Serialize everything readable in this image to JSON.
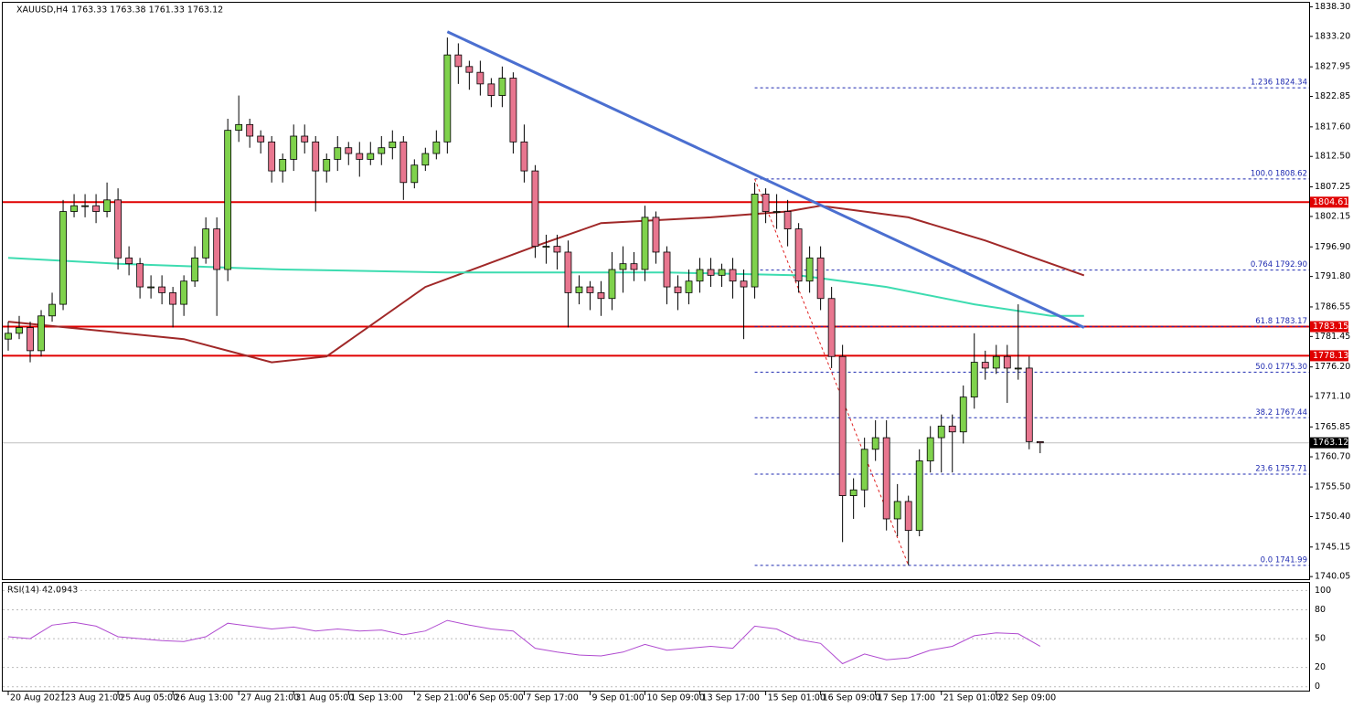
{
  "chart_data": [
    {
      "type": "candlestick",
      "title": "XAUUSD,H4",
      "subtitle": "1763.33 1763.38 1761.33 1763.12",
      "open": [
        1781,
        1782,
        1783,
        1779,
        1785,
        1787,
        1803,
        1804,
        1804,
        1803,
        1805,
        1795,
        1794,
        1790,
        1790,
        1789,
        1787,
        1791,
        1795,
        1800,
        1793,
        1817,
        1818,
        1816,
        1815,
        1810,
        1812,
        1816,
        1815,
        1810,
        1812,
        1814,
        1813,
        1812,
        1813,
        1814,
        1815,
        1808,
        1811,
        1813,
        1815,
        1830,
        1828,
        1827,
        1825,
        1823,
        1826,
        1815,
        1810,
        1797,
        1797,
        1796,
        1789,
        1790,
        1789,
        1788,
        1793,
        1794,
        1793,
        1802,
        1796,
        1790,
        1789,
        1791,
        1793,
        1792,
        1793,
        1791,
        1790,
        1806,
        1803,
        1803,
        1800,
        1791,
        1795,
        1788,
        1778,
        1754,
        1755,
        1762,
        1764,
        1750,
        1753,
        1748,
        1760,
        1764,
        1766,
        1765,
        1771,
        1777,
        1776,
        1778,
        1776,
        1776,
        1763.33
      ],
      "high": [
        1784,
        1785,
        1784,
        1786,
        1789,
        1805,
        1806,
        1806,
        1806,
        1808,
        1807,
        1797,
        1795,
        1792,
        1792,
        1790,
        1792,
        1797,
        1802,
        1802,
        1819,
        1823,
        1819,
        1817,
        1816,
        1813,
        1818,
        1818,
        1816,
        1813,
        1816,
        1815,
        1815,
        1815,
        1816,
        1817,
        1816,
        1812,
        1814,
        1817,
        1833,
        1832,
        1829,
        1829,
        1826,
        1828,
        1827,
        1818,
        1811,
        1799,
        1799,
        1798,
        1792,
        1791,
        1791,
        1796,
        1797,
        1796,
        1804,
        1803,
        1797,
        1792,
        1793,
        1795,
        1795,
        1794,
        1795,
        1793,
        1808,
        1807,
        1806,
        1805,
        1801,
        1797,
        1797,
        1790,
        1780,
        1757,
        1764,
        1767,
        1767,
        1756,
        1754,
        1762,
        1766,
        1768,
        1768,
        1773,
        1782,
        1779,
        1780,
        1780,
        1787,
        1778,
        1763.38
      ],
      "low": [
        1779,
        1781,
        1777,
        1778,
        1784,
        1786,
        1802,
        1802,
        1801,
        1802,
        1793,
        1792,
        1788,
        1788,
        1787,
        1783,
        1785,
        1790,
        1794,
        1785,
        1791,
        1815,
        1814,
        1813,
        1808,
        1808,
        1810,
        1813,
        1803,
        1808,
        1810,
        1811,
        1809,
        1811,
        1811,
        1812,
        1805,
        1807,
        1810,
        1812,
        1813,
        1825,
        1824,
        1823,
        1821,
        1821,
        1813,
        1808,
        1795,
        1794,
        1793,
        1783,
        1787,
        1786,
        1785,
        1786,
        1789,
        1791,
        1791,
        1794,
        1787,
        1786,
        1787,
        1789,
        1790,
        1790,
        1788,
        1781,
        1788,
        1801,
        1800,
        1797,
        1789,
        1789,
        1786,
        1776,
        1746,
        1750,
        1752,
        1760,
        1748,
        1747,
        1742,
        1747,
        1758,
        1758,
        1758,
        1763,
        1769,
        1774,
        1775,
        1770,
        1774,
        1762,
        1761.33
      ],
      "close": [
        1782,
        1783,
        1779,
        1785,
        1787,
        1803,
        1804,
        1804,
        1803,
        1805,
        1795,
        1794,
        1790,
        1790,
        1789,
        1787,
        1791,
        1795,
        1800,
        1793,
        1817,
        1818,
        1816,
        1815,
        1810,
        1812,
        1816,
        1815,
        1810,
        1812,
        1814,
        1813,
        1812,
        1813,
        1814,
        1815,
        1808,
        1811,
        1813,
        1815,
        1830,
        1828,
        1827,
        1825,
        1823,
        1826,
        1815,
        1810,
        1797,
        1797,
        1796,
        1789,
        1790,
        1789,
        1788,
        1793,
        1794,
        1793,
        1802,
        1796,
        1790,
        1789,
        1791,
        1793,
        1792,
        1793,
        1791,
        1790,
        1806,
        1803,
        1803,
        1800,
        1791,
        1795,
        1788,
        1778,
        1754,
        1755,
        1762,
        1764,
        1750,
        1753,
        1748,
        1760,
        1764,
        1766,
        1765,
        1771,
        1777,
        1776,
        1778,
        1776,
        1776,
        1763.33,
        1763.12
      ],
      "up_color": "#7fd24c",
      "down_color": "#e8768f",
      "series": [
        {
          "color": "#a02828",
          "x": [
            0,
            16,
            24,
            29,
            38,
            48,
            54,
            64,
            71,
            74,
            82,
            89,
            98
          ],
          "values": [
            1784,
            1781,
            1777,
            1778,
            1790,
            1797,
            1801,
            1802,
            1803,
            1804,
            1802,
            1798,
            1792
          ]
        },
        {
          "color": "#3ddcb0",
          "x": [
            0,
            10,
            25,
            40,
            60,
            72,
            80,
            88,
            95,
            98
          ],
          "values": [
            1795,
            1794,
            1793,
            1792.5,
            1792.5,
            1792,
            1790,
            1787,
            1785,
            1785
          ]
        }
      ],
      "trendline": {
        "color": "#4b6fd0",
        "x": [
          40,
          98
        ],
        "y": [
          1834,
          1783
        ]
      },
      "hlines": [
        {
          "value": 1804.61,
          "color": "#e00000"
        },
        {
          "value": 1783.15,
          "color": "#e00000"
        },
        {
          "value": 1778.13,
          "color": "#e00000"
        }
      ],
      "last_price": 1763.12,
      "fib": {
        "color": "#1e2ab0",
        "x": [
          68,
          82
        ],
        "y": [
          1808.62,
          1741.99
        ],
        "levels": [
          {
            "value": 1824.34,
            "label": "1.236 1824.34"
          },
          {
            "value": 1808.62,
            "label": "100.0 1808.62"
          },
          {
            "value": 1792.9,
            "label": "0.764 1792.90"
          },
          {
            "value": 1783.17,
            "label": "61.8 1783.17"
          },
          {
            "value": 1775.3,
            "label": "50.0 1775.30"
          },
          {
            "value": 1767.44,
            "label": "38.2 1767.44"
          },
          {
            "value": 1757.71,
            "label": "23.6 1757.71"
          },
          {
            "value": 1741.99,
            "label": "0.0 1741.99"
          }
        ]
      },
      "xlim": [
        -0.5,
        118.5
      ],
      "xticks": [
        {
          "value": 0,
          "label": "20 Aug 2021"
        },
        {
          "value": 5,
          "label": "23 Aug 21:00"
        },
        {
          "value": 10,
          "label": "25 Aug 05:00"
        },
        {
          "value": 15,
          "label": "26 Aug 13:00"
        },
        {
          "value": 21,
          "label": "27 Aug 21:00"
        },
        {
          "value": 26,
          "label": "31 Aug 05:00"
        },
        {
          "value": 31,
          "label": "1 Sep 13:00"
        },
        {
          "value": 37,
          "label": "2 Sep 21:00"
        },
        {
          "value": 42,
          "label": "6 Sep 05:00"
        },
        {
          "value": 47,
          "label": "7 Sep 17:00"
        },
        {
          "value": 53,
          "label": "9 Sep 01:00"
        },
        {
          "value": 58,
          "label": "10 Sep 09:00"
        },
        {
          "value": 63,
          "label": "13 Sep 17:00"
        },
        {
          "value": 69,
          "label": "15 Sep 01:00"
        },
        {
          "value": 74,
          "label": "16 Sep 09:00"
        },
        {
          "value": 79,
          "label": "17 Sep 17:00"
        },
        {
          "value": 85,
          "label": "21 Sep 01:00"
        },
        {
          "value": 90,
          "label": "22 Sep 09:00"
        }
      ],
      "ylim": [
        1739.6,
        1839.0
      ],
      "yticks": [
        {
          "value": 1838.3,
          "label": "1838.30"
        },
        {
          "value": 1833.2,
          "label": "1833.20"
        },
        {
          "value": 1827.95,
          "label": "1827.95"
        },
        {
          "value": 1822.85,
          "label": "1822.85"
        },
        {
          "value": 1817.6,
          "label": "1817.60"
        },
        {
          "value": 1812.5,
          "label": "1812.50"
        },
        {
          "value": 1807.25,
          "label": "1807.25"
        },
        {
          "value": 1802.15,
          "label": "1802.15"
        },
        {
          "value": 1796.9,
          "label": "1796.90"
        },
        {
          "value": 1791.8,
          "label": "1791.80"
        },
        {
          "value": 1786.55,
          "label": "1786.55"
        },
        {
          "value": 1781.45,
          "label": "1781.45"
        },
        {
          "value": 1776.2,
          "label": "1776.20"
        },
        {
          "value": 1771.1,
          "label": "1771.10"
        },
        {
          "value": 1765.85,
          "label": "1765.85"
        },
        {
          "value": 1760.7,
          "label": "1760.70"
        },
        {
          "value": 1755.5,
          "label": "1755.50"
        },
        {
          "value": 1750.4,
          "label": "1750.40"
        },
        {
          "value": 1745.15,
          "label": "1745.15"
        },
        {
          "value": 1740.05,
          "label": "1740.05"
        }
      ]
    },
    {
      "type": "line",
      "title": "RSI(14) 42.0943",
      "series": [
        {
          "color": "#b04bd0",
          "x": [
            0,
            2,
            4,
            6,
            8,
            10,
            12,
            14,
            16,
            18,
            20,
            22,
            24,
            26,
            28,
            30,
            32,
            34,
            36,
            38,
            40,
            42,
            44,
            46,
            48,
            50,
            52,
            54,
            56,
            58,
            60,
            62,
            64,
            66,
            68,
            70,
            72,
            74,
            76,
            78,
            80,
            82,
            84,
            86,
            88,
            90,
            92,
            94
          ],
          "values": [
            52,
            50,
            64,
            67,
            63,
            52,
            50,
            48,
            47,
            52,
            66,
            63,
            60,
            62,
            58,
            60,
            58,
            59,
            54,
            58,
            69,
            64,
            60,
            58,
            40,
            36,
            33,
            32,
            36,
            44,
            38,
            40,
            42,
            40,
            63,
            60,
            49,
            45,
            24,
            34,
            28,
            30,
            38,
            42,
            53,
            56,
            55,
            42.0943
          ]
        }
      ],
      "xlim": [
        -0.5,
        118.5
      ],
      "ylim": [
        -5,
        108
      ],
      "yticks": [
        100,
        80,
        50,
        20,
        0
      ],
      "grid": true
    }
  ]
}
